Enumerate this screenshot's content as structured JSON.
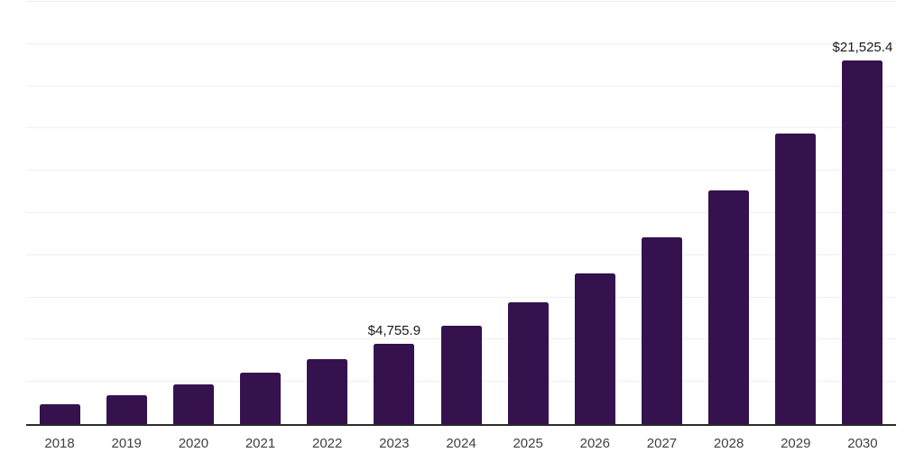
{
  "chart_data": {
    "type": "bar",
    "title": "",
    "xlabel": "",
    "ylabel": "",
    "categories": [
      "2018",
      "2019",
      "2020",
      "2021",
      "2022",
      "2023",
      "2024",
      "2025",
      "2026",
      "2027",
      "2028",
      "2029",
      "2030"
    ],
    "values": [
      1160,
      1695,
      2350,
      3060,
      3830,
      4755.9,
      5840,
      7215,
      8940,
      11080,
      13840,
      17190,
      21525.4
    ],
    "data_labels": [
      null,
      null,
      null,
      null,
      null,
      "$4,755.9",
      null,
      null,
      null,
      null,
      null,
      null,
      "$21,525.4"
    ],
    "ylim": [
      0,
      25000
    ],
    "gridline_step": 2500,
    "grid": true,
    "legend": false,
    "y_axis_tick_labels_visible": false,
    "currency_prefix": "$"
  },
  "style": {
    "bar_color": "#35124E",
    "gridline_color": "#efefef",
    "axis_line_color": "#2b2b2b",
    "x_tick_label_color": "#404040",
    "data_label_color": "#1a1a1a",
    "background_color": "#ffffff"
  }
}
